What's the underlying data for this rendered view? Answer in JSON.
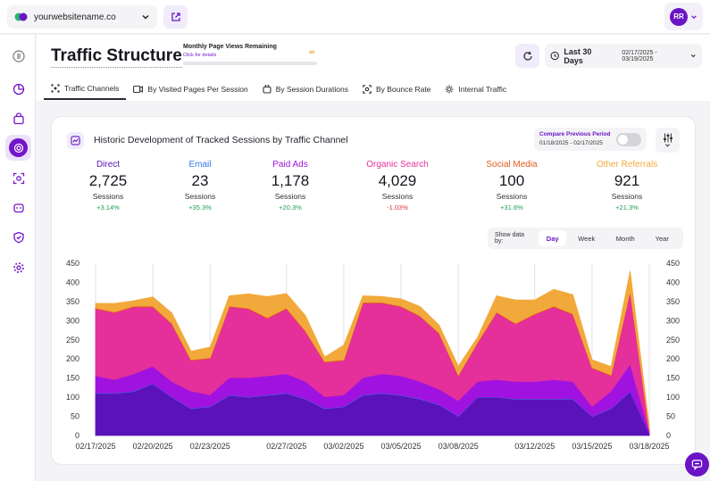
{
  "topbar": {
    "site_name": "yourwebsitename.co",
    "user_initials": "RR"
  },
  "header": {
    "title": "Traffic Structure",
    "mpv_label": "Monthly Page Views Remaining",
    "mpv_link": "Click for details",
    "mpv_value": "∞",
    "date_label": "Last 30 Days",
    "date_range": "02/17/2025 - 03/19/2025"
  },
  "tabs": [
    {
      "label": "Traffic Channels",
      "icon": "channels-icon"
    },
    {
      "label": "By Visited Pages Per Session",
      "icon": "pages-icon"
    },
    {
      "label": "By Session Durations",
      "icon": "duration-icon"
    },
    {
      "label": "By Bounce Rate",
      "icon": "bounce-icon"
    },
    {
      "label": "Internal Traffic",
      "icon": "internal-icon"
    }
  ],
  "card": {
    "title": "Historic Development of Tracked Sessions by Traffic Channel",
    "compare_label": "Compare Previous Period",
    "compare_range": "01/18/2025 - 02/17/2025"
  },
  "stats": [
    {
      "label": "Direct",
      "value": "2,725",
      "unit": "Sessions",
      "change": "+3.14%",
      "color": "#5b12b8",
      "change_color": "#1f9d55"
    },
    {
      "label": "Email",
      "value": "23",
      "unit": "Sessions",
      "change": "+35.3%",
      "color": "#2f7de1",
      "change_color": "#1f9d55"
    },
    {
      "label": "Paid Ads",
      "value": "1,178",
      "unit": "Sessions",
      "change": "+20.3%",
      "color": "#a012e0",
      "change_color": "#1f9d55"
    },
    {
      "label": "Organic Search",
      "value": "4,029",
      "unit": "Sessions",
      "change": "-1.03%",
      "color": "#e52f9a",
      "change_color": "#e0323c"
    },
    {
      "label": "Social Media",
      "value": "100",
      "unit": "Sessions",
      "change": "+31.6%",
      "color": "#e25c1c",
      "change_color": "#1f9d55"
    },
    {
      "label": "Other Referrals",
      "value": "921",
      "unit": "Sessions",
      "change": "+21.3%",
      "color": "#f2a93b",
      "change_color": "#1f9d55"
    }
  ],
  "showby": {
    "label": "Show data by:",
    "options": [
      "Day",
      "Week",
      "Month",
      "Year"
    ],
    "selected": "Day"
  },
  "chart_data": {
    "type": "area",
    "stacked": true,
    "ylim": [
      0,
      450
    ],
    "yticks": [
      0,
      50,
      100,
      150,
      200,
      250,
      300,
      350,
      400,
      450
    ],
    "x": [
      "02/17/2025",
      "02/18/2025",
      "02/19/2025",
      "02/20/2025",
      "02/21/2025",
      "02/22/2025",
      "02/23/2025",
      "02/24/2025",
      "02/25/2025",
      "02/26/2025",
      "02/27/2025",
      "02/28/2025",
      "03/01/2025",
      "03/02/2025",
      "03/03/2025",
      "03/04/2025",
      "03/05/2025",
      "03/06/2025",
      "03/07/2025",
      "03/08/2025",
      "03/09/2025",
      "03/10/2025",
      "03/11/2025",
      "03/12/2025",
      "03/13/2025",
      "03/14/2025",
      "03/15/2025",
      "03/16/2025",
      "03/17/2025",
      "03/18/2025"
    ],
    "xtick_labels": [
      "02/17/2025",
      "02/20/2025",
      "02/23/2025",
      "02/27/2025",
      "03/02/2025",
      "03/05/2025",
      "03/08/2025",
      "03/12/2025",
      "03/15/2025",
      "03/18/2025"
    ],
    "xtick_indices": [
      0,
      3,
      6,
      10,
      13,
      16,
      19,
      23,
      26,
      29
    ],
    "series": [
      {
        "name": "Direct",
        "color": "#5b12b8",
        "values": [
          110,
          110,
          115,
          135,
          100,
          70,
          75,
          105,
          100,
          105,
          110,
          95,
          70,
          75,
          105,
          110,
          105,
          95,
          80,
          50,
          100,
          100,
          95,
          95,
          95,
          95,
          50,
          70,
          115,
          5
        ]
      },
      {
        "name": "Email",
        "color": "#2f7de1",
        "values": [
          1,
          1,
          1,
          1,
          1,
          1,
          1,
          1,
          1,
          1,
          1,
          1,
          1,
          1,
          1,
          1,
          1,
          1,
          1,
          1,
          1,
          1,
          1,
          1,
          1,
          1,
          1,
          1,
          1,
          0
        ]
      },
      {
        "name": "Paid Ads",
        "color": "#a012e0",
        "values": [
          45,
          35,
          45,
          45,
          40,
          45,
          30,
          45,
          50,
          50,
          50,
          45,
          30,
          30,
          45,
          50,
          50,
          45,
          40,
          40,
          40,
          45,
          45,
          45,
          50,
          45,
          25,
          45,
          70,
          5
        ]
      },
      {
        "name": "Organic Search",
        "color": "#e52f9a",
        "values": [
          175,
          175,
          175,
          155,
          150,
          80,
          95,
          185,
          180,
          150,
          170,
          130,
          90,
          90,
          195,
          185,
          180,
          170,
          145,
          65,
          100,
          175,
          150,
          175,
          190,
          175,
          100,
          40,
          190,
          5
        ]
      },
      {
        "name": "Social Media",
        "color": "#e25c1c",
        "values": [
          2,
          2,
          2,
          2,
          2,
          2,
          2,
          2,
          2,
          2,
          2,
          2,
          2,
          2,
          2,
          2,
          2,
          2,
          2,
          2,
          2,
          2,
          2,
          2,
          2,
          2,
          2,
          2,
          2,
          0
        ]
      },
      {
        "name": "Other Referrals",
        "color": "#f2a93b",
        "values": [
          12,
          22,
          14,
          24,
          27,
          22,
          28,
          27,
          37,
          55,
          38,
          40,
          12,
          38,
          17,
          15,
          19,
          24,
          20,
          23,
          13,
          42,
          61,
          36,
          44,
          50,
          20,
          22,
          52,
          10
        ]
      }
    ]
  }
}
